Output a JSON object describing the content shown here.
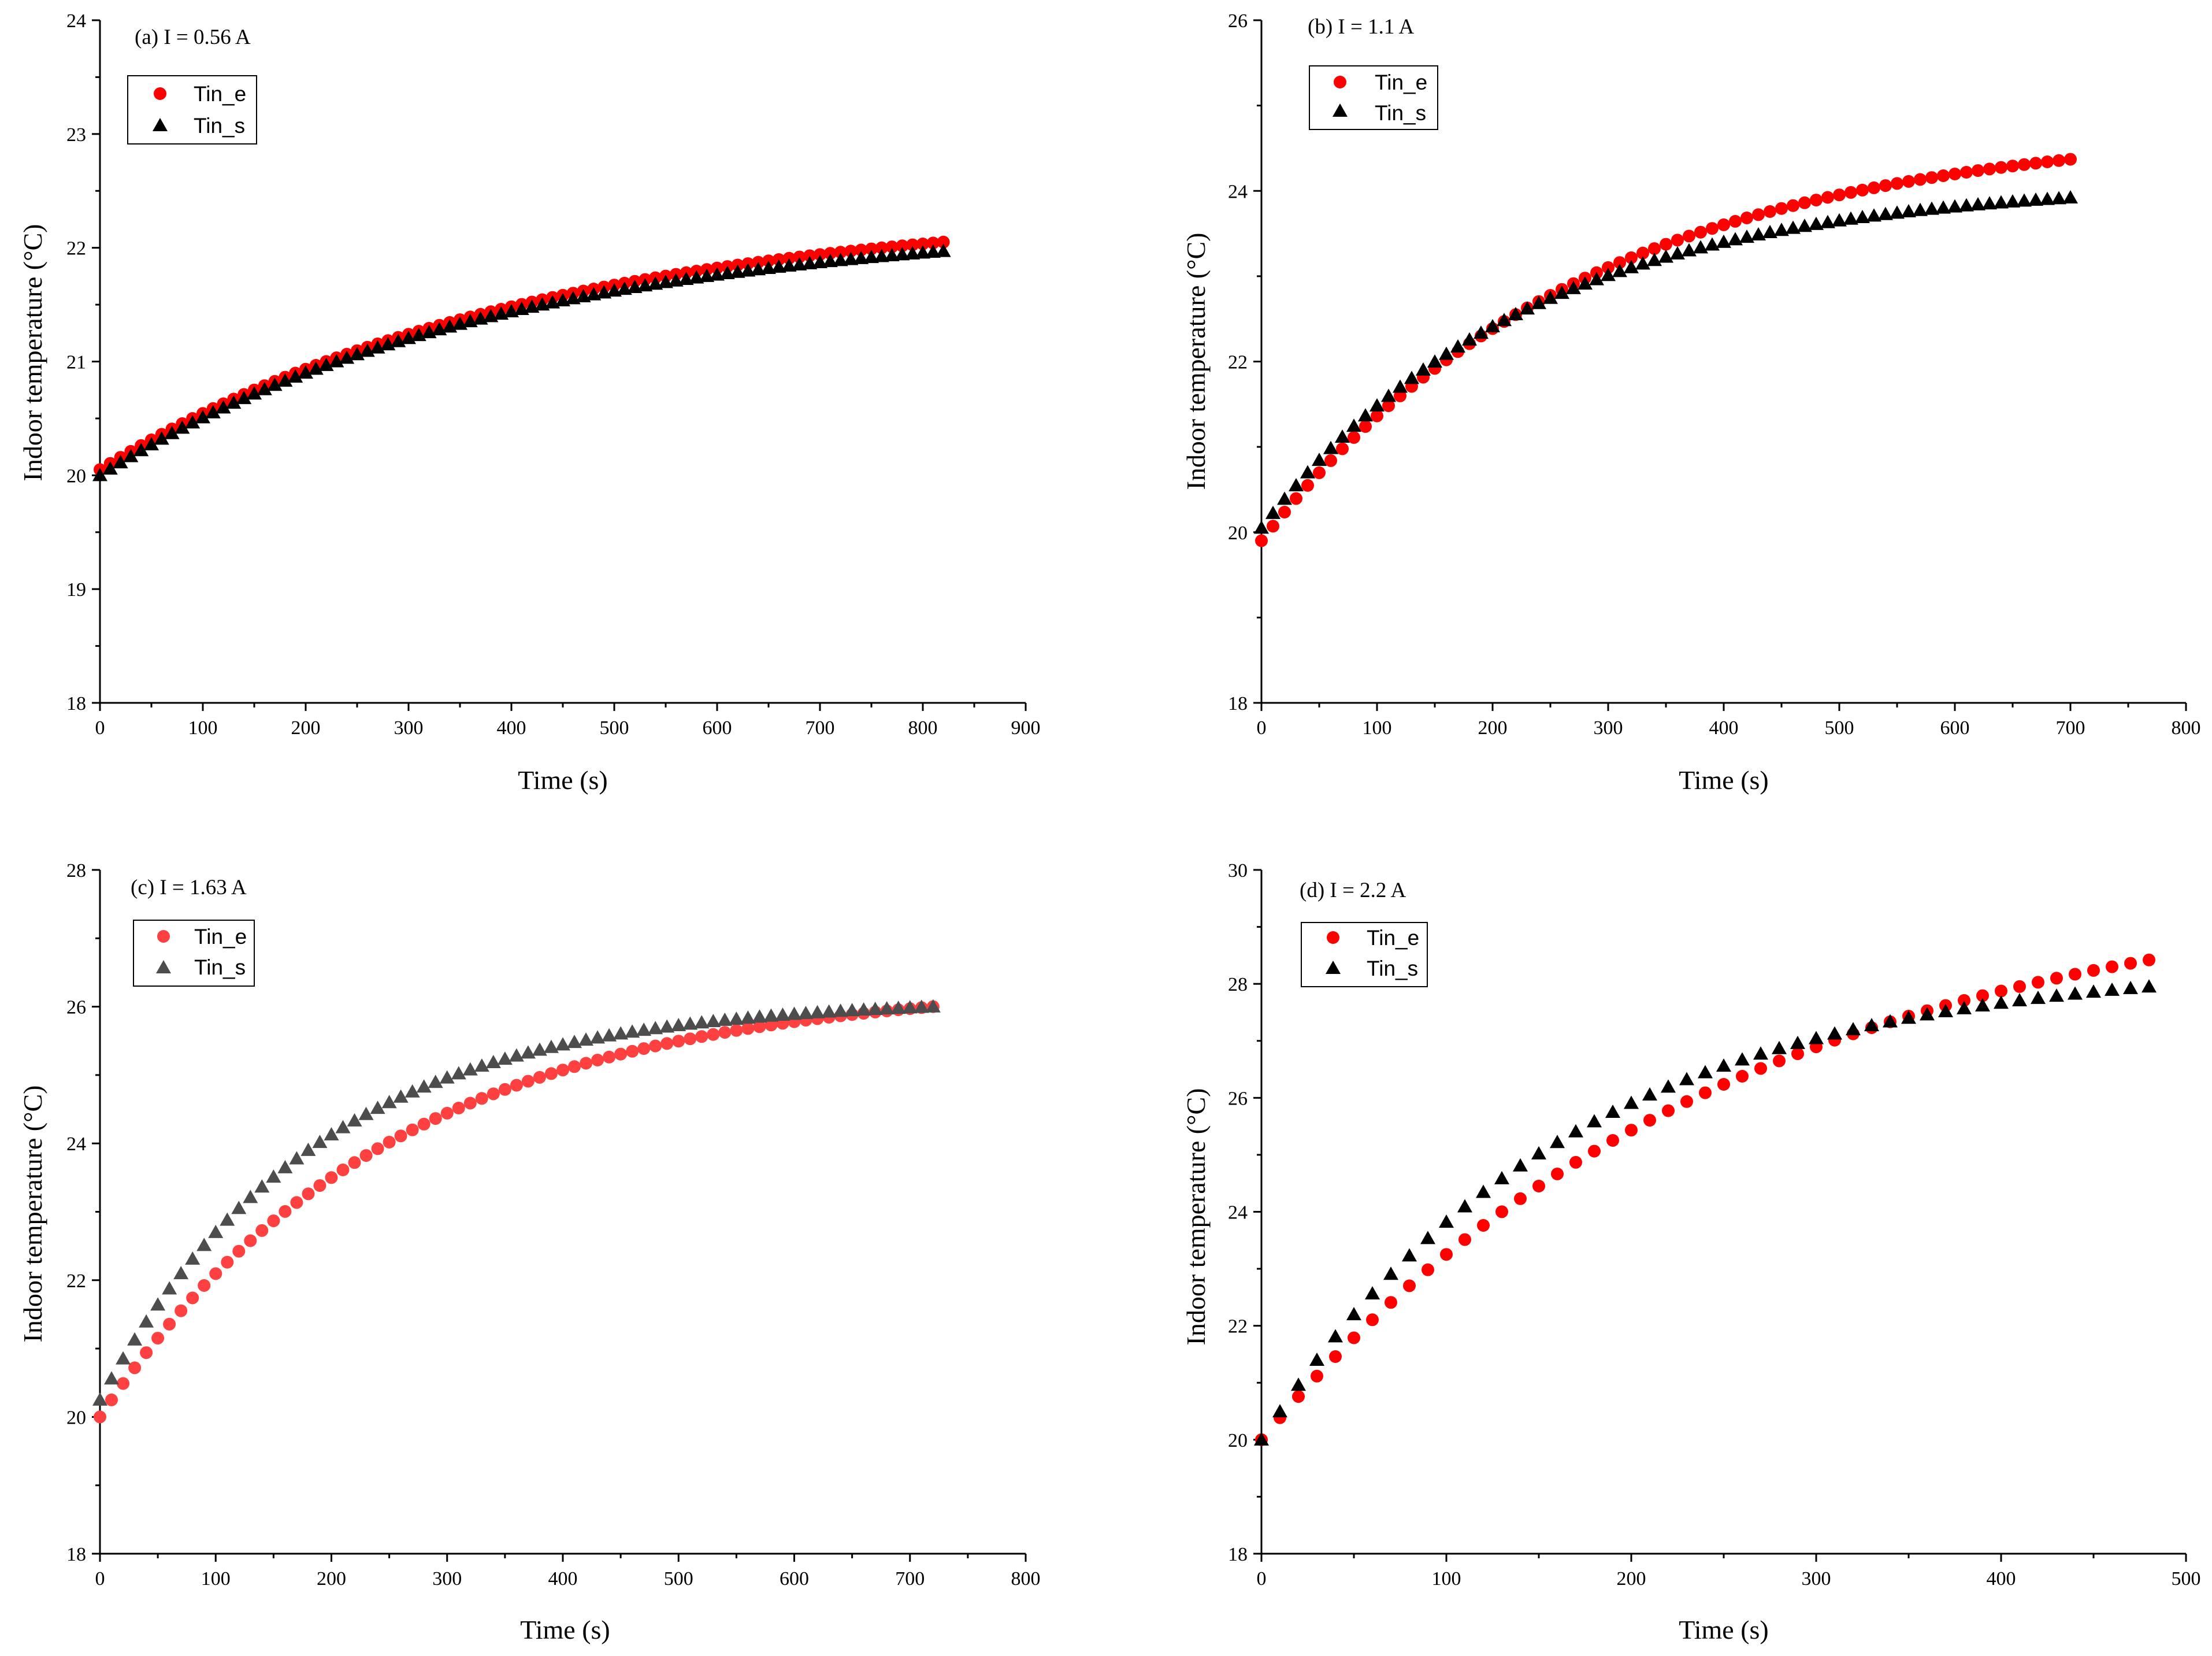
{
  "chart_data": [
    {
      "type": "scatter",
      "title": "(a) I = 0.56 A",
      "xlabel": "Time (s)",
      "ylabel": "Indoor temperature (°C)",
      "xlim": [
        0,
        900
      ],
      "ylim": [
        18,
        24
      ],
      "xticks": [
        0,
        100,
        200,
        300,
        400,
        500,
        600,
        700,
        800,
        900
      ],
      "yticks": [
        18,
        19,
        20,
        21,
        22,
        23,
        24
      ],
      "model": {
        "x_step": 10,
        "x_end": 820
      },
      "series": [
        {
          "name": "Tin_e",
          "marker": "circle",
          "color": "#ff0000",
          "start": 20.05,
          "end": 22.05,
          "plateau": 22.45,
          "tau": 420
        },
        {
          "name": "Tin_s",
          "marker": "triangle",
          "color": "#000000",
          "start": 20.0,
          "end": 21.97,
          "plateau": 22.3,
          "tau": 390
        }
      ]
    },
    {
      "type": "scatter",
      "title": "(b) I = 1.1 A",
      "xlabel": "Time (s)",
      "ylabel": "Indoor temperature (°C)",
      "xlim": [
        0,
        800
      ],
      "ylim": [
        18,
        26
      ],
      "xticks": [
        0,
        100,
        200,
        300,
        400,
        500,
        600,
        700,
        800
      ],
      "yticks": [
        18,
        20,
        22,
        24,
        26
      ],
      "model": {
        "x_step": 10,
        "x_end": 700
      },
      "series": [
        {
          "name": "Tin_e",
          "marker": "circle",
          "color": "#ff0000",
          "start": 19.9,
          "end": 24.37,
          "plateau": 24.85,
          "tau": 280
        },
        {
          "name": "Tin_s",
          "marker": "triangle",
          "color": "#000000",
          "start": 20.05,
          "end": 23.92,
          "plateau": 24.05,
          "tau": 230
        }
      ]
    },
    {
      "type": "scatter",
      "title": "(c) I = 1.63 A",
      "xlabel": "Time (s)",
      "ylabel": "Indoor temperature (°C)",
      "xlim": [
        0,
        800
      ],
      "ylim": [
        18,
        28
      ],
      "xticks": [
        0,
        100,
        200,
        300,
        400,
        500,
        600,
        700,
        800
      ],
      "yticks": [
        18,
        20,
        22,
        24,
        26,
        28
      ],
      "model": {
        "x_step": 10,
        "x_end": 720
      },
      "series": [
        {
          "name": "Tin_e",
          "marker": "circle",
          "color": "#ff4040",
          "start": 20.0,
          "end": 26.0,
          "plateau": 26.45,
          "tau": 250
        },
        {
          "name": "Tin_s",
          "marker": "triangle",
          "color": "#4d4d4d",
          "start": 20.25,
          "end": 26.0,
          "plateau": 26.05,
          "tau": 185
        }
      ]
    },
    {
      "type": "scatter",
      "title": "(d) I = 2.2 A",
      "xlabel": "Time (s)",
      "ylabel": "Indoor temperature (°C)",
      "xlim": [
        0,
        500
      ],
      "ylim": [
        18,
        30
      ],
      "xticks": [
        0,
        100,
        200,
        300,
        400,
        500
      ],
      "yticks": [
        18,
        20,
        22,
        24,
        26,
        28,
        30
      ],
      "model": {
        "x_step": 10,
        "x_end": 480
      },
      "series": [
        {
          "name": "Tin_e",
          "marker": "circle",
          "color": "#ff0000",
          "start": 20.0,
          "end": 28.42,
          "plateau": 30.5,
          "tau": 250
        },
        {
          "name": "Tin_s",
          "marker": "triangle",
          "color": "#000000",
          "start": 20.0,
          "end": 27.95,
          "plateau": 28.6,
          "tau": 165
        }
      ]
    }
  ]
}
